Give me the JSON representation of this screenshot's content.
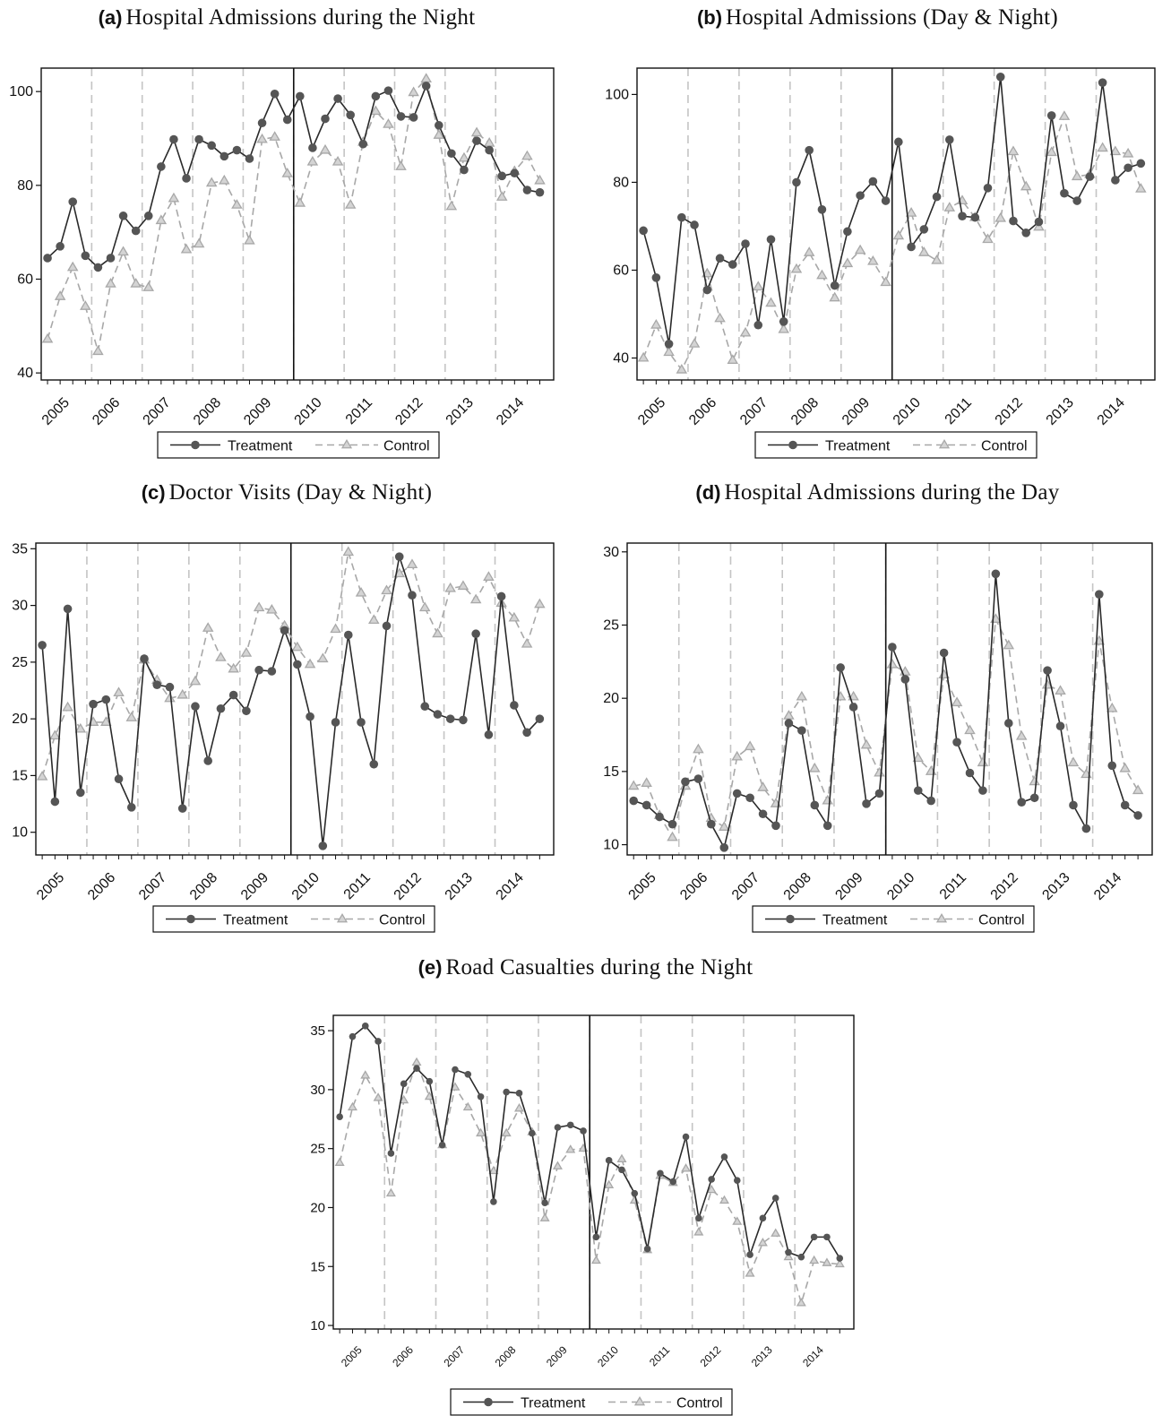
{
  "legend": {
    "treatment": "Treatment",
    "control": "Control"
  },
  "colors": {
    "treatment": "#555555",
    "control": "#a8a8a8",
    "frame": "#111111",
    "year_rule": "#c4c4c4",
    "reform_rule": "#111111"
  },
  "chart_data": [
    {
      "type": "line",
      "panel_label": "(a)",
      "title": "Hospital Admissions during the Night",
      "x_year_labels": [
        "2005",
        "2006",
        "2007",
        "2008",
        "2009",
        "2010",
        "2011",
        "2012",
        "2013",
        "2014"
      ],
      "x_range": [
        2004.5,
        2014.65
      ],
      "ylim": [
        38.5,
        105
      ],
      "yticks": [
        40,
        60,
        80,
        100
      ],
      "grid": false,
      "legend_position": "bottom",
      "series": [
        {
          "name": "Treatment",
          "marker": "circle",
          "line": "solid",
          "values": [
            64.5,
            67,
            76.5,
            65,
            62.5,
            64.5,
            73.5,
            70.3,
            73.5,
            84,
            89.8,
            81.5,
            89.8,
            88.5,
            86.2,
            87.5,
            85.7,
            93.3,
            99.5,
            94,
            99,
            88,
            94.2,
            98.5,
            95,
            88.8,
            99,
            100.2,
            94.7,
            94.5,
            101.2,
            92.8,
            86.8,
            83.3,
            89.5,
            87.5,
            82,
            82.6,
            79,
            78.5
          ]
        },
        {
          "name": "Control",
          "marker": "triangle",
          "line": "dashed",
          "values": [
            47.2,
            56.3,
            62.5,
            54.2,
            44.6,
            59,
            65.8,
            59,
            58.2,
            72.5,
            77.2,
            66.3,
            67.5,
            80.5,
            81,
            75.8,
            68.2,
            89.8,
            90.3,
            82.5,
            76.2,
            85,
            87.5,
            85,
            75.8,
            89.2,
            95.8,
            93,
            84,
            99.8,
            102.7,
            90.7,
            75.5,
            85.8,
            91.2,
            89,
            77.5,
            83,
            86.2,
            81
          ]
        }
      ]
    },
    {
      "type": "line",
      "panel_label": "(b)",
      "title": "Hospital Admissions (Day & Night)",
      "x_year_labels": [
        "2005",
        "2006",
        "2007",
        "2008",
        "2009",
        "2010",
        "2011",
        "2012",
        "2013",
        "2014"
      ],
      "x_range": [
        2004.5,
        2014.65
      ],
      "ylim": [
        35,
        106
      ],
      "yticks": [
        40,
        60,
        80,
        100
      ],
      "grid": false,
      "legend_position": "bottom",
      "series": [
        {
          "name": "Treatment",
          "marker": "circle",
          "line": "solid",
          "values": [
            69,
            58.3,
            43.2,
            72,
            70.3,
            55.5,
            62.7,
            61.3,
            66,
            47.5,
            67,
            48.3,
            80,
            87.3,
            73.8,
            56.5,
            68.8,
            77,
            80.2,
            75.8,
            89.2,
            65.3,
            69.3,
            76.7,
            89.7,
            72.3,
            72,
            78.7,
            104,
            71.2,
            68.5,
            71,
            95.2,
            77.5,
            75.8,
            81.3,
            102.7,
            80.5,
            83.3,
            84.3
          ]
        },
        {
          "name": "Control",
          "marker": "triangle",
          "line": "dashed",
          "values": [
            40,
            47.5,
            41.3,
            37.3,
            43.2,
            59.2,
            49,
            39.5,
            45.7,
            56.2,
            52.5,
            46.5,
            60.2,
            64,
            58.8,
            53.7,
            61.5,
            64.5,
            62,
            57.2,
            67.8,
            73,
            64,
            62.2,
            74.2,
            75.8,
            72,
            67,
            71.8,
            87,
            79,
            69.8,
            86.8,
            95,
            81.3,
            81.8,
            87.8,
            87,
            86.5,
            78.5
          ]
        }
      ]
    },
    {
      "type": "line",
      "panel_label": "(c)",
      "title": "Doctor Visits (Day & Night)",
      "x_year_labels": [
        "2005",
        "2006",
        "2007",
        "2008",
        "2009",
        "2010",
        "2011",
        "2012",
        "2013",
        "2014"
      ],
      "x_range": [
        2004.5,
        2014.65
      ],
      "ylim": [
        8,
        35.5
      ],
      "yticks": [
        10,
        15,
        20,
        25,
        30,
        35
      ],
      "grid": false,
      "legend_position": "bottom",
      "series": [
        {
          "name": "Treatment",
          "marker": "circle",
          "line": "solid",
          "values": [
            26.5,
            12.7,
            29.7,
            13.5,
            21.3,
            21.7,
            14.7,
            12.2,
            25.3,
            23,
            22.8,
            12.1,
            21.1,
            16.3,
            20.9,
            22.1,
            20.7,
            24.3,
            24.2,
            27.8,
            24.8,
            20.2,
            8.8,
            19.7,
            27.4,
            19.7,
            16,
            28.2,
            34.3,
            30.9,
            21.1,
            20.4,
            20,
            19.9,
            27.5,
            18.6,
            30.8,
            21.2,
            18.8,
            20
          ]
        },
        {
          "name": "Control",
          "marker": "triangle",
          "line": "dashed",
          "values": [
            14.9,
            18.5,
            21,
            19.1,
            19.7,
            19.7,
            22.3,
            20.1,
            25.2,
            23.4,
            21.8,
            22.1,
            23.3,
            28,
            25.4,
            24.4,
            25.8,
            29.8,
            29.6,
            28.2,
            26.3,
            24.8,
            25.3,
            27.9,
            34.7,
            31.1,
            28.7,
            31.3,
            32.8,
            33.6,
            29.8,
            27.5,
            31.5,
            31.7,
            30.5,
            32.5,
            30.2,
            28.9,
            26.6,
            30.1
          ]
        }
      ]
    },
    {
      "type": "line",
      "panel_label": "(d)",
      "title": "Hospital Admissions during the Day",
      "x_year_labels": [
        "2005",
        "2006",
        "2007",
        "2008",
        "2009",
        "2010",
        "2011",
        "2012",
        "2013",
        "2014"
      ],
      "x_range": [
        2004.5,
        2014.65
      ],
      "ylim": [
        9.3,
        30.6
      ],
      "yticks": [
        10,
        15,
        20,
        25,
        30
      ],
      "grid": false,
      "legend_position": "bottom",
      "series": [
        {
          "name": "Treatment",
          "marker": "circle",
          "line": "solid",
          "values": [
            13,
            12.7,
            11.9,
            11.4,
            14.3,
            14.5,
            11.4,
            9.8,
            13.5,
            13.2,
            12.1,
            11.3,
            18.3,
            17.8,
            12.7,
            11.3,
            22.1,
            19.4,
            12.8,
            13.5,
            23.5,
            21.3,
            13.7,
            13,
            23.1,
            17,
            14.9,
            13.7,
            28.5,
            18.3,
            12.9,
            13.2,
            21.9,
            18.1,
            12.7,
            11.1,
            27.1,
            15.4,
            12.7,
            12
          ]
        },
        {
          "name": "Control",
          "marker": "triangle",
          "line": "dashed",
          "values": [
            14,
            14.2,
            12,
            10.5,
            14,
            16.5,
            11.8,
            11.2,
            16,
            16.7,
            13.9,
            12.8,
            18.8,
            20.1,
            15.2,
            13,
            20.1,
            20.1,
            16.8,
            14.9,
            22.3,
            21.8,
            15.9,
            15,
            21.6,
            19.7,
            17.8,
            15.6,
            25.4,
            23.6,
            17.4,
            14.3,
            20.9,
            20.5,
            15.6,
            14.8,
            23.9,
            19.3,
            15.2,
            13.7
          ]
        }
      ]
    },
    {
      "type": "line",
      "panel_label": "(e)",
      "title": "Road Casualties during the Night",
      "x_year_labels": [
        "2005",
        "2006",
        "2007",
        "2008",
        "2009",
        "2010",
        "2011",
        "2012",
        "2013",
        "2014"
      ],
      "x_range": [
        2004.5,
        2014.65
      ],
      "ylim": [
        9.7,
        36.3
      ],
      "yticks": [
        10,
        15,
        20,
        25,
        30,
        35
      ],
      "grid": false,
      "legend_position": "bottom",
      "series": [
        {
          "name": "Treatment",
          "marker": "circle",
          "line": "solid",
          "values": [
            27.7,
            34.5,
            35.4,
            34.1,
            24.6,
            30.5,
            31.8,
            30.7,
            25.3,
            31.7,
            31.3,
            29.4,
            20.5,
            29.8,
            29.7,
            26.3,
            20.4,
            26.8,
            27,
            26.5,
            17.5,
            24,
            23.2,
            21.2,
            16.5,
            22.9,
            22.2,
            26,
            19.1,
            22.4,
            24.3,
            22.3,
            16,
            19.1,
            20.8,
            16.2,
            15.8,
            17.5,
            17.5,
            15.7
          ]
        },
        {
          "name": "Control",
          "marker": "triangle",
          "line": "dashed",
          "values": [
            23.8,
            28.5,
            31.2,
            29.3,
            21.2,
            29.1,
            32.3,
            29.4,
            25.3,
            30.2,
            28.5,
            26.3,
            23.1,
            26.3,
            28.4,
            26.4,
            19.1,
            23.5,
            24.9,
            25,
            15.5,
            21.9,
            24.1,
            20.6,
            16.4,
            22.7,
            22.1,
            23.3,
            17.9,
            21.5,
            20.6,
            18.8,
            14.4,
            17,
            17.8,
            15.8,
            11.9,
            15.5,
            15.3,
            15.2
          ]
        }
      ]
    }
  ]
}
